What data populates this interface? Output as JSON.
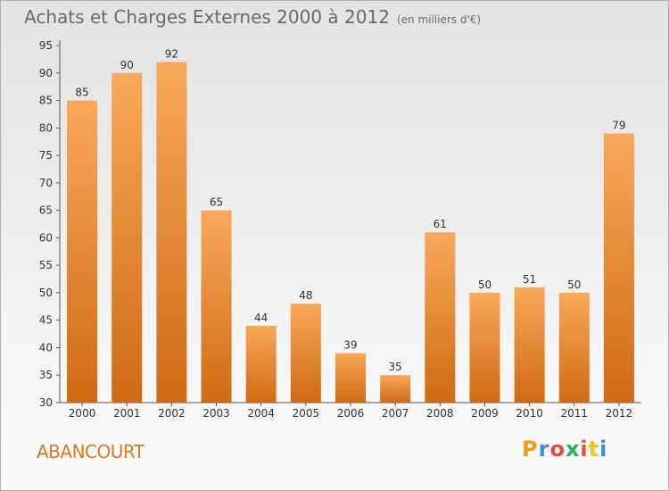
{
  "title": "Achats et Charges Externes 2000 à 2012",
  "subtitle": "(en milliers d'€)",
  "commune": "ABANCOURT",
  "logo": {
    "letters": [
      "P",
      "r",
      "o",
      "x",
      "i",
      "t",
      "i"
    ],
    "colors": [
      "#f39c12",
      "#3c8dd3",
      "#e84c3d",
      "#27ae60",
      "#e84c3d",
      "#f1c40f",
      "#3c8dd3"
    ]
  },
  "colors": {
    "bar_light": "#f8a95a",
    "bar_dark": "#d06a12",
    "commune": "#d9781f"
  },
  "chart_data": {
    "type": "bar",
    "categories": [
      "2000",
      "2001",
      "2002",
      "2003",
      "2004",
      "2005",
      "2006",
      "2007",
      "2008",
      "2009",
      "2010",
      "2011",
      "2012"
    ],
    "values": [
      85,
      90,
      92,
      65,
      44,
      48,
      39,
      35,
      61,
      50,
      51,
      50,
      79
    ],
    "y_ticks": [
      30,
      35,
      40,
      45,
      50,
      55,
      60,
      65,
      70,
      75,
      80,
      85,
      90,
      95
    ],
    "ylim": [
      30,
      95
    ],
    "grid": false
  }
}
